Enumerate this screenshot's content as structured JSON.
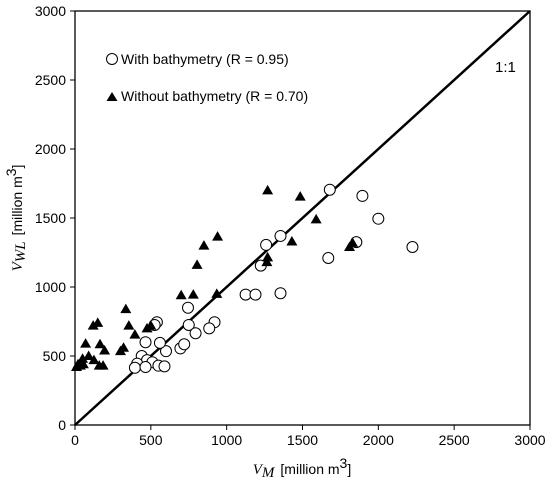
{
  "chart_data": {
    "type": "scatter",
    "xlabel": {
      "symbol": "V",
      "subscript": "M",
      "unit_prefix": "[million m",
      "unit_sup": "3",
      "unit_suffix": "]"
    },
    "ylabel": {
      "symbol": "V",
      "subscript": "WL",
      "unit_prefix": "[million m",
      "unit_sup": "3",
      "unit_suffix": "]"
    },
    "xlim": [
      0,
      3000
    ],
    "ylim": [
      0,
      3000
    ],
    "x_ticks": [
      0,
      500,
      1000,
      1500,
      2000,
      2500,
      3000
    ],
    "y_ticks": [
      0,
      500,
      1000,
      1500,
      2000,
      2500,
      3000
    ],
    "grid": false,
    "legend_position": "top-left",
    "reference_line": {
      "label": "1:1",
      "from": [
        0,
        0
      ],
      "to": [
        3000,
        3000
      ]
    },
    "series": [
      {
        "name": "With bathymetry (R = 0.95)",
        "marker": "open-circle",
        "color": "#000000",
        "points": [
          [
            1680,
            1705
          ],
          [
            1895,
            1660
          ],
          [
            2000,
            1495
          ],
          [
            1855,
            1325
          ],
          [
            2225,
            1290
          ],
          [
            1670,
            1210
          ],
          [
            1355,
            1370
          ],
          [
            1260,
            1305
          ],
          [
            1225,
            1155
          ],
          [
            1355,
            955
          ],
          [
            1125,
            945
          ],
          [
            1190,
            945
          ],
          [
            745,
            850
          ],
          [
            540,
            745
          ],
          [
            525,
            725
          ],
          [
            920,
            745
          ],
          [
            885,
            700
          ],
          [
            750,
            725
          ],
          [
            795,
            665
          ],
          [
            600,
            535
          ],
          [
            695,
            555
          ],
          [
            720,
            585
          ],
          [
            465,
            600
          ],
          [
            560,
            595
          ],
          [
            440,
            500
          ],
          [
            475,
            470
          ],
          [
            510,
            455
          ],
          [
            410,
            445
          ],
          [
            550,
            430
          ],
          [
            590,
            425
          ],
          [
            395,
            415
          ],
          [
            465,
            420
          ]
        ]
      },
      {
        "name": "Without bathymetry (R = 0.70)",
        "marker": "filled-triangle",
        "color": "#000000",
        "points": [
          [
            1270,
            1700
          ],
          [
            1485,
            1655
          ],
          [
            1590,
            1490
          ],
          [
            1810,
            1290
          ],
          [
            1830,
            1320
          ],
          [
            1430,
            1330
          ],
          [
            940,
            1365
          ],
          [
            850,
            1300
          ],
          [
            805,
            1160
          ],
          [
            1270,
            1215
          ],
          [
            1265,
            1180
          ],
          [
            780,
            945
          ],
          [
            700,
            940
          ],
          [
            935,
            950
          ],
          [
            500,
            720
          ],
          [
            475,
            700
          ],
          [
            335,
            840
          ],
          [
            355,
            720
          ],
          [
            150,
            740
          ],
          [
            120,
            720
          ],
          [
            395,
            655
          ],
          [
            320,
            560
          ],
          [
            300,
            535
          ],
          [
            165,
            585
          ],
          [
            195,
            540
          ],
          [
            70,
            590
          ],
          [
            90,
            500
          ],
          [
            50,
            480
          ],
          [
            125,
            470
          ],
          [
            20,
            440
          ],
          [
            55,
            440
          ],
          [
            10,
            420
          ],
          [
            35,
            430
          ],
          [
            160,
            430
          ],
          [
            185,
            430
          ]
        ]
      }
    ]
  }
}
